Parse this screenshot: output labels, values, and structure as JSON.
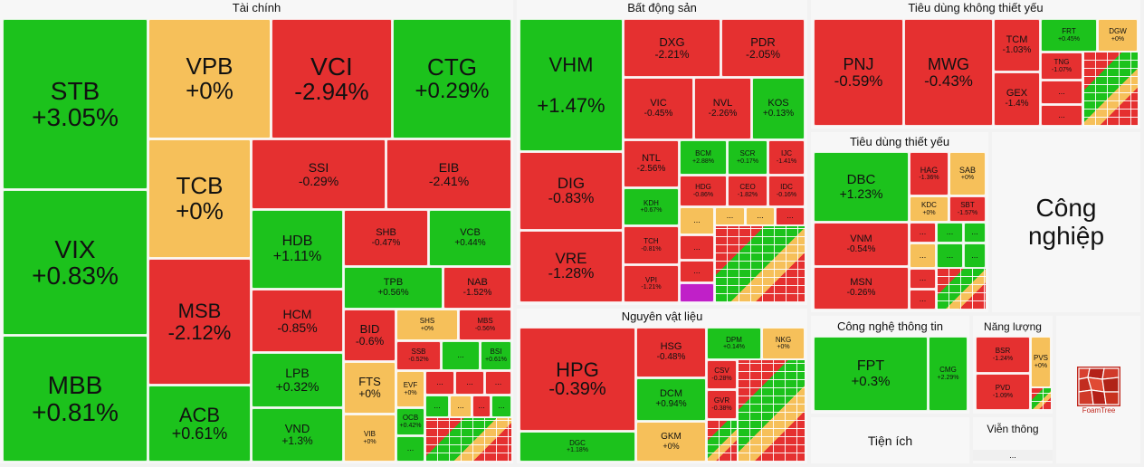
{
  "colors": {
    "up": "#1cc21c",
    "down": "#e53030",
    "flat": "#f6c05a",
    "ceiling": "#c020c8"
  },
  "ellipsis": "...",
  "sectors": {
    "taichinh": {
      "title": "Tài chính"
    },
    "batdongsan": {
      "title": "Bất động sản"
    },
    "nguyenvatlieu": {
      "title": "Nguyên vật liệu"
    },
    "tieudungkhongthietyeu": {
      "title": "Tiêu dùng không thiết yếu"
    },
    "tieudungthietyeu": {
      "title": "Tiêu dùng thiết yếu"
    },
    "congnghe": {
      "title": "Công nghệ thông tin"
    },
    "nangluong": {
      "title": "Năng lượng"
    },
    "congnghiep": {
      "title": "Công nghiệp"
    },
    "tienich": {
      "title": "Tiện ích"
    },
    "vienthong": {
      "title": "Viễn thông"
    }
  },
  "stocks": {
    "STB": {
      "symbol": "STB",
      "change": "+3.05%"
    },
    "VIX": {
      "symbol": "VIX",
      "change": "+0.83%"
    },
    "MBB": {
      "symbol": "MBB",
      "change": "+0.81%"
    },
    "VPB": {
      "symbol": "VPB",
      "change": "+0%"
    },
    "TCB": {
      "symbol": "TCB",
      "change": "+0%"
    },
    "MSB": {
      "symbol": "MSB",
      "change": "-2.12%"
    },
    "ACB": {
      "symbol": "ACB",
      "change": "+0.61%"
    },
    "VCI": {
      "symbol": "VCI",
      "change": "-2.94%"
    },
    "CTG": {
      "symbol": "CTG",
      "change": "+0.29%"
    },
    "SSI": {
      "symbol": "SSI",
      "change": "-0.29%"
    },
    "EIB": {
      "symbol": "EIB",
      "change": "-2.41%"
    },
    "HDB": {
      "symbol": "HDB",
      "change": "+1.11%"
    },
    "SHB": {
      "symbol": "SHB",
      "change": "-0.47%"
    },
    "VCB": {
      "symbol": "VCB",
      "change": "+0.44%"
    },
    "TPB": {
      "symbol": "TPB",
      "change": "+0.56%"
    },
    "NAB": {
      "symbol": "NAB",
      "change": "-1.52%"
    },
    "HCM": {
      "symbol": "HCM",
      "change": "-0.85%"
    },
    "LPB": {
      "symbol": "LPB",
      "change": "+0.32%"
    },
    "VND": {
      "symbol": "VND",
      "change": "+1.3%"
    },
    "BID": {
      "symbol": "BID",
      "change": "-0.6%"
    },
    "FTS": {
      "symbol": "FTS",
      "change": "+0%"
    },
    "VIB": {
      "symbol": "VIB",
      "change": "+0%"
    },
    "SHS": {
      "symbol": "SHS",
      "change": "+0%"
    },
    "MBS": {
      "symbol": "MBS",
      "change": "-0.56%"
    },
    "SSB": {
      "symbol": "SSB",
      "change": "-0.52%"
    },
    "BSI": {
      "symbol": "BSI",
      "change": "+0.61%"
    },
    "EVF": {
      "symbol": "EVF",
      "change": "+0%"
    },
    "OCB": {
      "symbol": "OCB",
      "change": "+0.42%"
    },
    "VHM": {
      "symbol": "VHM",
      "change": "+1.47%"
    },
    "DIG": {
      "symbol": "DIG",
      "change": "-0.83%"
    },
    "VRE": {
      "symbol": "VRE",
      "change": "-1.28%"
    },
    "DXG": {
      "symbol": "DXG",
      "change": "-2.21%"
    },
    "PDR": {
      "symbol": "PDR",
      "change": "-2.05%"
    },
    "VIC": {
      "symbol": "VIC",
      "change": "-0.45%"
    },
    "NVL": {
      "symbol": "NVL",
      "change": "-2.26%"
    },
    "KOS": {
      "symbol": "KOS",
      "change": "+0.13%"
    },
    "NTL": {
      "symbol": "NTL",
      "change": "-2.56%"
    },
    "BCM": {
      "symbol": "BCM",
      "change": "+2.88%"
    },
    "SCR": {
      "symbol": "SCR",
      "change": "+0.17%"
    },
    "IJC": {
      "symbol": "IJC",
      "change": "-1.41%"
    },
    "HDG": {
      "symbol": "HDG",
      "change": "-0.86%"
    },
    "CEO": {
      "symbol": "CEO",
      "change": "-1.82%"
    },
    "IDC": {
      "symbol": "IDC",
      "change": "-0.16%"
    },
    "KDH": {
      "symbol": "KDH",
      "change": "+0.67%"
    },
    "TCH": {
      "symbol": "TCH",
      "change": "-0.81%"
    },
    "VPI": {
      "symbol": "VPI",
      "change": "-1.21%"
    },
    "HPG": {
      "symbol": "HPG",
      "change": "-0.39%"
    },
    "HSG": {
      "symbol": "HSG",
      "change": "-0.48%"
    },
    "DPM": {
      "symbol": "DPM",
      "change": "+0.14%"
    },
    "NKG": {
      "symbol": "NKG",
      "change": "+0%"
    },
    "DCM": {
      "symbol": "DCM",
      "change": "+0.94%"
    },
    "CSV": {
      "symbol": "CSV",
      "change": "-0.28%"
    },
    "GVR": {
      "symbol": "GVR",
      "change": "-0.38%"
    },
    "GKM": {
      "symbol": "GKM",
      "change": "+0%"
    },
    "DGC": {
      "symbol": "DGC",
      "change": "+1.18%"
    },
    "PNJ": {
      "symbol": "PNJ",
      "change": "-0.59%"
    },
    "MWG": {
      "symbol": "MWG",
      "change": "-0.43%"
    },
    "TCM": {
      "symbol": "TCM",
      "change": "-1.03%"
    },
    "GEX": {
      "symbol": "GEX",
      "change": "-1.4%"
    },
    "FRT": {
      "symbol": "FRT",
      "change": "+0.45%"
    },
    "DGW": {
      "symbol": "DGW",
      "change": "+0%"
    },
    "TNG": {
      "symbol": "TNG",
      "change": "-1.07%"
    },
    "DBC": {
      "symbol": "DBC",
      "change": "+1.23%"
    },
    "HAG": {
      "symbol": "HAG",
      "change": "-1.36%"
    },
    "SAB": {
      "symbol": "SAB",
      "change": "+0%"
    },
    "KDC": {
      "symbol": "KDC",
      "change": "+0%"
    },
    "SBT": {
      "symbol": "SBT",
      "change": "-1.57%"
    },
    "VNM": {
      "symbol": "VNM",
      "change": "-0.54%"
    },
    "MSN": {
      "symbol": "MSN",
      "change": "-0.26%"
    },
    "FPT": {
      "symbol": "FPT",
      "change": "+0.3%"
    },
    "CMG": {
      "symbol": "CMG",
      "change": "+2.29%"
    },
    "BSR": {
      "symbol": "BSR",
      "change": "-1.24%"
    },
    "PVD": {
      "symbol": "PVD",
      "change": "-1.09%"
    },
    "PVS": {
      "symbol": "PVS",
      "change": "+0%"
    }
  },
  "branding": {
    "logo_text": "FoamTree"
  }
}
